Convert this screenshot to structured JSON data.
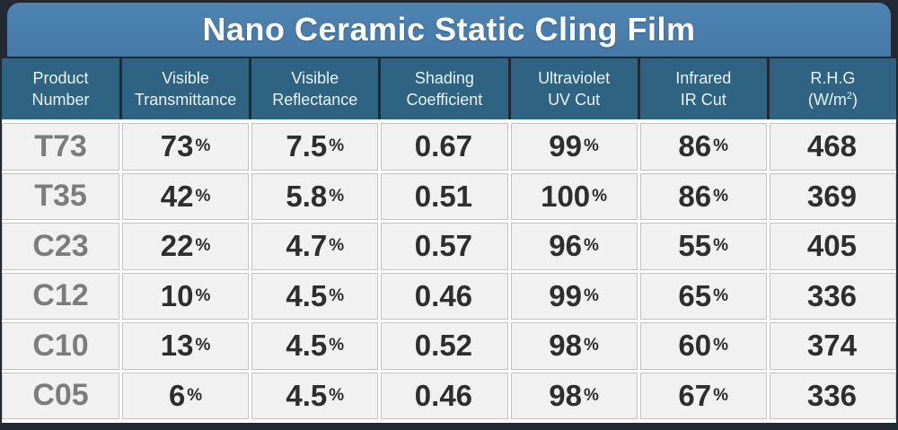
{
  "title": "Nano Ceramic Static Cling Film",
  "colors": {
    "title_bar_blue": "#4B80AE",
    "header_teal": "#2E6482",
    "cell_gray": "#F2F1F1",
    "frame_dark": "#222932",
    "product_text": "#7C7C7C",
    "value_text": "#2E2E2E"
  },
  "table": {
    "headers": [
      {
        "line1": "Product",
        "line2": "Number"
      },
      {
        "line1": "Visible",
        "line2": "Transmittance"
      },
      {
        "line1": "Visible",
        "line2": "Reflectance"
      },
      {
        "line1": "Shading",
        "line2": "Coefficient"
      },
      {
        "line1": "Ultraviolet",
        "line2": "UV Cut"
      },
      {
        "line1": "Infrared",
        "line2": "IR Cut"
      },
      {
        "line1": "R.H.G",
        "line2_pre": "(W/m",
        "line2_sup": "2",
        "line2_post": ")"
      }
    ],
    "rows": [
      {
        "product": "T73",
        "values": [
          {
            "v": "73",
            "unit": "%"
          },
          {
            "v": "7.5",
            "unit": "%"
          },
          {
            "v": "0.67",
            "unit": ""
          },
          {
            "v": "99",
            "unit": "%"
          },
          {
            "v": "86",
            "unit": "%"
          },
          {
            "v": "468",
            "unit": ""
          }
        ]
      },
      {
        "product": "T35",
        "values": [
          {
            "v": "42",
            "unit": "%"
          },
          {
            "v": "5.8",
            "unit": "%"
          },
          {
            "v": "0.51",
            "unit": ""
          },
          {
            "v": "100",
            "unit": "%"
          },
          {
            "v": "86",
            "unit": "%"
          },
          {
            "v": "369",
            "unit": ""
          }
        ]
      },
      {
        "product": "C23",
        "values": [
          {
            "v": "22",
            "unit": "%"
          },
          {
            "v": "4.7",
            "unit": "%"
          },
          {
            "v": "0.57",
            "unit": ""
          },
          {
            "v": "96",
            "unit": "%"
          },
          {
            "v": "55",
            "unit": "%"
          },
          {
            "v": "405",
            "unit": ""
          }
        ]
      },
      {
        "product": "C12",
        "values": [
          {
            "v": "10",
            "unit": "%"
          },
          {
            "v": "4.5",
            "unit": "%"
          },
          {
            "v": "0.46",
            "unit": ""
          },
          {
            "v": "99",
            "unit": "%"
          },
          {
            "v": "65",
            "unit": "%"
          },
          {
            "v": "336",
            "unit": ""
          }
        ]
      },
      {
        "product": "C10",
        "values": [
          {
            "v": "13",
            "unit": "%"
          },
          {
            "v": "4.5",
            "unit": "%"
          },
          {
            "v": "0.52",
            "unit": ""
          },
          {
            "v": "98",
            "unit": "%"
          },
          {
            "v": "60",
            "unit": "%"
          },
          {
            "v": "374",
            "unit": ""
          }
        ]
      },
      {
        "product": "C05",
        "values": [
          {
            "v": "6",
            "unit": "%"
          },
          {
            "v": "4.5",
            "unit": "%"
          },
          {
            "v": "0.46",
            "unit": ""
          },
          {
            "v": "98",
            "unit": "%"
          },
          {
            "v": "67",
            "unit": "%"
          },
          {
            "v": "336",
            "unit": ""
          }
        ]
      }
    ]
  },
  "chart_data": {
    "type": "table",
    "title": "Nano Ceramic Static Cling Film",
    "columns": [
      "Product Number",
      "Visible Transmittance",
      "Visible Reflectance",
      "Shading Coefficient",
      "Ultraviolet UV Cut",
      "Infrared IR Cut",
      "R.H.G (W/m2)"
    ],
    "rows": [
      [
        "T73",
        "73%",
        "7.5%",
        "0.67",
        "99%",
        "86%",
        "468"
      ],
      [
        "T35",
        "42%",
        "5.8%",
        "0.51",
        "100%",
        "86%",
        "369"
      ],
      [
        "C23",
        "22%",
        "4.7%",
        "0.57",
        "96%",
        "55%",
        "405"
      ],
      [
        "C12",
        "10%",
        "4.5%",
        "0.46",
        "99%",
        "65%",
        "336"
      ],
      [
        "C10",
        "13%",
        "4.5%",
        "0.52",
        "98%",
        "60%",
        "374"
      ],
      [
        "C05",
        "6%",
        "4.5%",
        "0.46",
        "98%",
        "67%",
        "336"
      ]
    ]
  }
}
